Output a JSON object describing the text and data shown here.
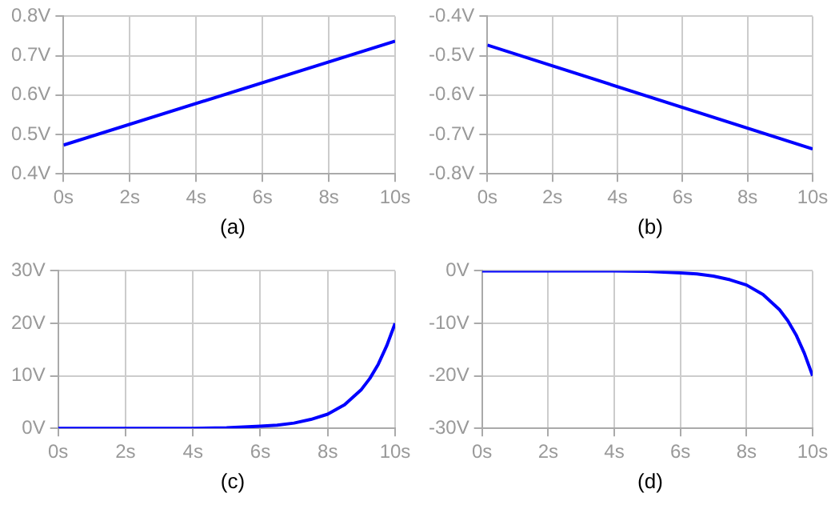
{
  "chart_data": [
    {
      "type": "line",
      "title": "(a)",
      "x": [
        0,
        10
      ],
      "values": [
        0.473,
        0.737
      ],
      "color": "#0000ff",
      "xlim": [
        0,
        10
      ],
      "xticks": [
        {
          "value": 0,
          "label": "0s"
        },
        {
          "value": 2,
          "label": "2s"
        },
        {
          "value": 4,
          "label": "4s"
        },
        {
          "value": 6,
          "label": "6s"
        },
        {
          "value": 8,
          "label": "8s"
        },
        {
          "value": 10,
          "label": "10s"
        }
      ],
      "ylim": [
        0.4,
        0.8
      ],
      "yticks": [
        {
          "value": 0.4,
          "label": "0.4V"
        },
        {
          "value": 0.5,
          "label": "0.5V"
        },
        {
          "value": 0.6,
          "label": "0.6V"
        },
        {
          "value": 0.7,
          "label": "0.7V"
        },
        {
          "value": 0.8,
          "label": "0.8V"
        }
      ],
      "grid": true
    },
    {
      "type": "line",
      "title": "(b)",
      "x": [
        0,
        10
      ],
      "values": [
        -0.473,
        -0.737
      ],
      "color": "#0000ff",
      "xlim": [
        0,
        10
      ],
      "xticks": [
        {
          "value": 0,
          "label": "0s"
        },
        {
          "value": 2,
          "label": "2s"
        },
        {
          "value": 4,
          "label": "4s"
        },
        {
          "value": 6,
          "label": "6s"
        },
        {
          "value": 8,
          "label": "8s"
        },
        {
          "value": 10,
          "label": "10s"
        }
      ],
      "ylim": [
        -0.8,
        -0.4
      ],
      "yticks": [
        {
          "value": -0.8,
          "label": "-0.8V"
        },
        {
          "value": -0.7,
          "label": "-0.7V"
        },
        {
          "value": -0.6,
          "label": "-0.6V"
        },
        {
          "value": -0.5,
          "label": "-0.5V"
        },
        {
          "value": -0.4,
          "label": "-0.4V"
        }
      ],
      "grid": true
    },
    {
      "type": "line",
      "title": "(c)",
      "x": [
        0,
        1,
        2,
        3,
        4,
        5,
        6,
        6.5,
        7,
        7.5,
        8,
        8.5,
        9,
        9.25,
        9.5,
        9.75,
        10
      ],
      "values": [
        0,
        0,
        0,
        0,
        0,
        0.1,
        0.4,
        0.6,
        1,
        1.7,
        2.7,
        4.5,
        7.4,
        9.5,
        12.2,
        15.7,
        20
      ],
      "color": "#0000ff",
      "xlim": [
        0,
        10
      ],
      "xticks": [
        {
          "value": 0,
          "label": "0s"
        },
        {
          "value": 2,
          "label": "2s"
        },
        {
          "value": 4,
          "label": "4s"
        },
        {
          "value": 6,
          "label": "6s"
        },
        {
          "value": 8,
          "label": "8s"
        },
        {
          "value": 10,
          "label": "10s"
        }
      ],
      "ylim": [
        0,
        30
      ],
      "yticks": [
        {
          "value": 0,
          "label": "0V"
        },
        {
          "value": 10,
          "label": "10V"
        },
        {
          "value": 20,
          "label": "20V"
        },
        {
          "value": 30,
          "label": "30V"
        }
      ],
      "grid": true
    },
    {
      "type": "line",
      "title": "(d)",
      "x": [
        0,
        1,
        2,
        3,
        4,
        5,
        6,
        6.5,
        7,
        7.5,
        8,
        8.5,
        9,
        9.25,
        9.5,
        9.75,
        10
      ],
      "values": [
        0,
        0,
        0,
        0,
        0,
        -0.1,
        -0.4,
        -0.6,
        -1,
        -1.7,
        -2.7,
        -4.5,
        -7.4,
        -9.5,
        -12.2,
        -15.7,
        -20
      ],
      "color": "#0000ff",
      "xlim": [
        0,
        10
      ],
      "xticks": [
        {
          "value": 0,
          "label": "0s"
        },
        {
          "value": 2,
          "label": "2s"
        },
        {
          "value": 4,
          "label": "4s"
        },
        {
          "value": 6,
          "label": "6s"
        },
        {
          "value": 8,
          "label": "8s"
        },
        {
          "value": 10,
          "label": "10s"
        }
      ],
      "ylim": [
        -30,
        0
      ],
      "yticks": [
        {
          "value": -30,
          "label": "-30V"
        },
        {
          "value": -20,
          "label": "-20V"
        },
        {
          "value": -10,
          "label": "-10V"
        },
        {
          "value": 0,
          "label": "0V"
        }
      ],
      "grid": true
    }
  ]
}
